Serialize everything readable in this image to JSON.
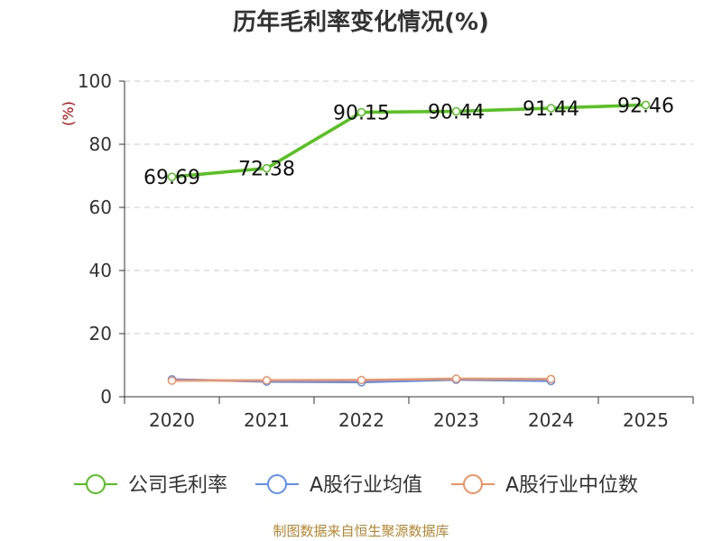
{
  "chart_data": {
    "type": "line",
    "title": "历年毛利率变化情况(%)",
    "ylabel": "(%)",
    "xlabel": "",
    "categories": [
      "2020",
      "2021",
      "2022",
      "2023",
      "2024",
      "2025"
    ],
    "ylim": [
      0,
      100
    ],
    "yticks": [
      0,
      20,
      40,
      60,
      80,
      100
    ],
    "grid": true,
    "legend_position": "bottom",
    "series": [
      {
        "name": "公司毛利率",
        "color": "#52c41a",
        "values": [
          69.69,
          72.38,
          90.15,
          90.44,
          91.44,
          92.46
        ],
        "labels": [
          "69.69",
          "72.38",
          "90.15",
          "90.44",
          "91.44",
          "92.46"
        ]
      },
      {
        "name": "A股行业均值",
        "color": "#5b8ff9",
        "values": [
          5.5,
          4.8,
          4.6,
          5.4,
          5.0,
          null
        ]
      },
      {
        "name": "A股行业中位数",
        "color": "#f6905c",
        "values": [
          5.1,
          5.2,
          5.3,
          5.7,
          5.6,
          null
        ]
      }
    ]
  },
  "source": "制图数据来自恒生聚源数据库"
}
